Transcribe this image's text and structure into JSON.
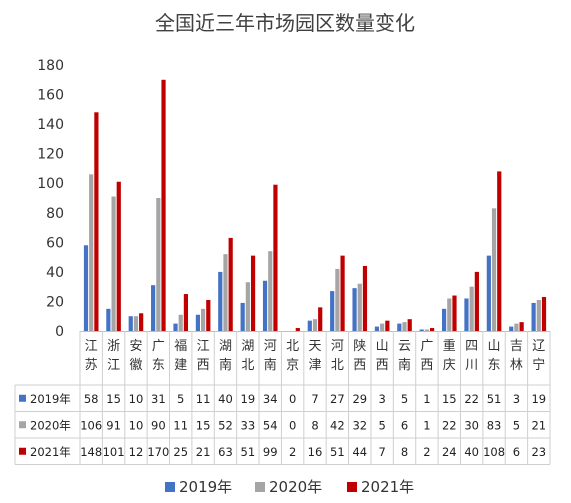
{
  "chart_data": {
    "type": "bar",
    "title": "全国近三年市场园区数量变化",
    "categories": [
      [
        "江",
        "苏"
      ],
      [
        "浙",
        "江"
      ],
      [
        "安",
        "徽"
      ],
      [
        "广",
        "东"
      ],
      [
        "福",
        "建"
      ],
      [
        "江",
        "西"
      ],
      [
        "湖",
        "南"
      ],
      [
        "湖",
        "北"
      ],
      [
        "河",
        "南"
      ],
      [
        "北",
        "京"
      ],
      [
        "天",
        "津"
      ],
      [
        "河",
        "北"
      ],
      [
        "陕",
        "西"
      ],
      [
        "山",
        "西"
      ],
      [
        "云",
        "南"
      ],
      [
        "广",
        "西"
      ],
      [
        "重",
        "庆"
      ],
      [
        "四",
        "川"
      ],
      [
        "山",
        "东"
      ],
      [
        "吉",
        "林"
      ],
      [
        "辽",
        "宁"
      ]
    ],
    "ylim": [
      0,
      180
    ],
    "yticks": [
      0,
      20,
      40,
      60,
      80,
      100,
      120,
      140,
      160,
      180
    ],
    "grid": false,
    "legend_position": "bottom",
    "data_table": true,
    "series": [
      {
        "name": "2019年",
        "color": "#4472C4",
        "values": [
          58,
          15,
          10,
          31,
          5,
          11,
          40,
          19,
          34,
          0,
          7,
          27,
          29,
          3,
          5,
          1,
          15,
          22,
          51,
          3,
          19
        ]
      },
      {
        "name": "2020年",
        "color": "#A5A5A5",
        "values": [
          106,
          91,
          10,
          90,
          11,
          15,
          52,
          33,
          54,
          0,
          8,
          42,
          32,
          5,
          6,
          1,
          22,
          30,
          83,
          5,
          21
        ]
      },
      {
        "name": "2021年",
        "color": "#C00000",
        "values": [
          148,
          101,
          12,
          170,
          25,
          21,
          63,
          51,
          99,
          2,
          16,
          51,
          44,
          7,
          8,
          2,
          24,
          40,
          108,
          6,
          23
        ]
      }
    ]
  }
}
